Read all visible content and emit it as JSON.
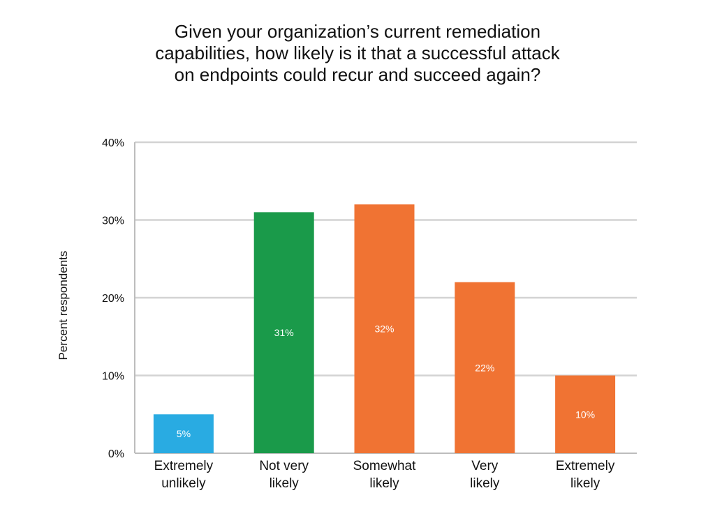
{
  "chart_data": {
    "type": "bar",
    "title_lines": [
      "Given your organization’s current remediation",
      "capabilities, how likely is it that a successful attack",
      "on endpoints could recur and succeed again?"
    ],
    "xlabel": "",
    "ylabel": "Percent respondents",
    "ylim": [
      0,
      40
    ],
    "yticks": [
      "0%",
      "10%",
      "20%",
      "30%",
      "40%"
    ],
    "ytick_values": [
      0,
      10,
      20,
      30,
      40
    ],
    "grid": true,
    "categories": [
      [
        "Extremely",
        "unlikely"
      ],
      [
        "Not very",
        "likely"
      ],
      [
        "Somewhat",
        "likely"
      ],
      [
        "Very",
        "likely"
      ],
      [
        "Extremely",
        "likely"
      ]
    ],
    "values": [
      5,
      31,
      32,
      22,
      10
    ],
    "labels": [
      "5%",
      "31%",
      "32%",
      "22%",
      "10%"
    ],
    "colors": [
      "#29ABE2",
      "#1A9A4A",
      "#F07333",
      "#F07333",
      "#F07333"
    ],
    "grid_color": "#d3d3d3",
    "axis_color": "#bdbdbd"
  }
}
